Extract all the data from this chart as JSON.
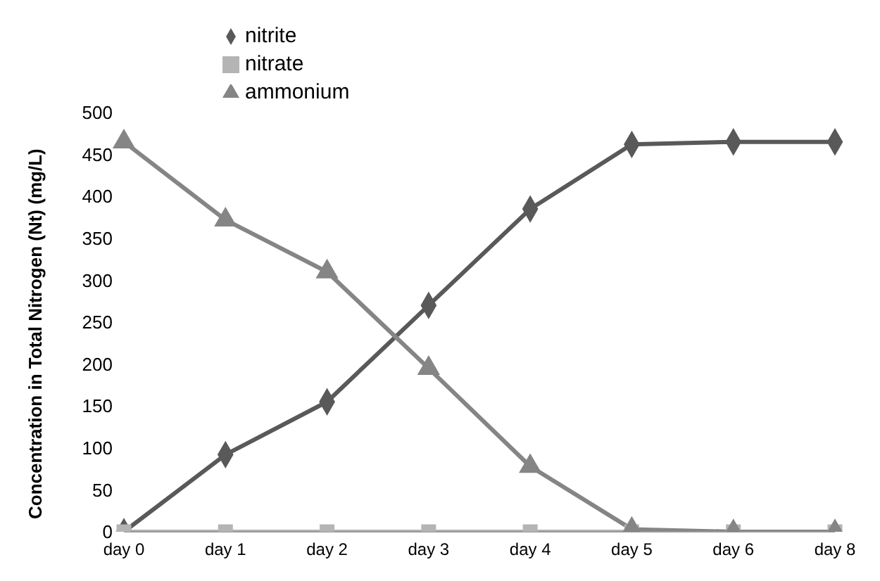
{
  "chart_data": {
    "type": "line",
    "ylabel": "Concentration in Total Nitrogen (Nt)   (mg/L)",
    "categories": [
      "day 0",
      "day 1",
      "day 2",
      "day 3",
      "day 4",
      "day 5",
      "day 6",
      "day 8"
    ],
    "series": [
      {
        "name": "nitrite",
        "color": "#595959",
        "marker": "diamond",
        "values": [
          0,
          92,
          155,
          270,
          385,
          462,
          465,
          465
        ]
      },
      {
        "name": "nitrate",
        "color": "#b4b4b4",
        "marker": "square",
        "values": [
          0,
          0,
          0,
          0,
          0,
          0,
          0,
          0
        ]
      },
      {
        "name": "ammonium",
        "color": "#858585",
        "marker": "triangle",
        "values": [
          465,
          372,
          310,
          195,
          78,
          3,
          0,
          0
        ]
      }
    ],
    "ylim": [
      0,
      500
    ],
    "yticks": [
      0,
      50,
      100,
      150,
      200,
      250,
      300,
      350,
      400,
      450,
      500
    ],
    "grid": false,
    "legend": "top left",
    "line_style": "solid"
  }
}
